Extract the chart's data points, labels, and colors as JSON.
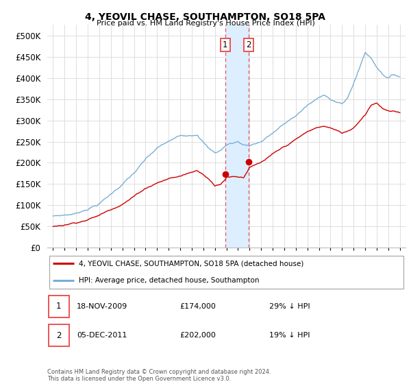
{
  "title": "4, YEOVIL CHASE, SOUTHAMPTON, SO18 5PA",
  "subtitle": "Price paid vs. HM Land Registry's House Price Index (HPI)",
  "red_label": "4, YEOVIL CHASE, SOUTHAMPTON, SO18 5PA (detached house)",
  "blue_label": "HPI: Average price, detached house, Southampton",
  "annotation1_num": "1",
  "annotation1_date": "18-NOV-2009",
  "annotation1_price": "£174,000",
  "annotation1_hpi": "29% ↓ HPI",
  "annotation2_num": "2",
  "annotation2_date": "05-DEC-2011",
  "annotation2_price": "£202,000",
  "annotation2_hpi": "19% ↓ HPI",
  "footer": "Contains HM Land Registry data © Crown copyright and database right 2024.\nThis data is licensed under the Open Government Licence v3.0.",
  "xlim_start": 1994.5,
  "xlim_end": 2025.5,
  "ylim_min": 0,
  "ylim_max": 525000,
  "red_color": "#cc0000",
  "blue_color": "#7aafd4",
  "shading_color": "#ddeeff",
  "vline_color": "#ee4444",
  "point1_x": 2009.88,
  "point1_y": 174000,
  "point2_x": 2011.92,
  "point2_y": 202000,
  "background_color": "#ffffff",
  "grid_color": "#dddddd",
  "yticks": [
    0,
    50000,
    100000,
    150000,
    200000,
    250000,
    300000,
    350000,
    400000,
    450000,
    500000
  ],
  "blue_years": [
    1995,
    1996,
    1997,
    1998,
    1999,
    2000,
    2001,
    2002,
    2003,
    2004,
    2005,
    2006,
    2007,
    2007.5,
    2008,
    2008.5,
    2009,
    2009.5,
    2010,
    2010.5,
    2011,
    2011.5,
    2012,
    2013,
    2014,
    2015,
    2016,
    2017,
    2018,
    2018.5,
    2019,
    2020,
    2020.5,
    2021,
    2021.5,
    2022,
    2022.5,
    2023,
    2023.5,
    2024,
    2024.5,
    2025
  ],
  "blue_vals": [
    75000,
    78000,
    82000,
    95000,
    108000,
    130000,
    155000,
    180000,
    210000,
    235000,
    250000,
    262000,
    268000,
    272000,
    255000,
    238000,
    228000,
    235000,
    247000,
    252000,
    255000,
    248000,
    248000,
    258000,
    278000,
    298000,
    318000,
    342000,
    358000,
    368000,
    358000,
    345000,
    360000,
    395000,
    430000,
    468000,
    455000,
    435000,
    420000,
    412000,
    418000,
    415000
  ],
  "red_years": [
    1995,
    1996,
    1997,
    1998,
    1999,
    2000,
    2001,
    2002,
    2003,
    2004,
    2005,
    2006,
    2007,
    2007.5,
    2008,
    2008.5,
    2009,
    2009.5,
    2009.88,
    2010,
    2010.5,
    2011,
    2011.5,
    2011.92,
    2012,
    2012.5,
    2013,
    2014,
    2015,
    2016,
    2017,
    2018,
    2018.5,
    2019,
    2020,
    2020.5,
    2021,
    2022,
    2022.5,
    2023,
    2023.5,
    2024,
    2025
  ],
  "red_vals": [
    50000,
    55000,
    62000,
    70000,
    80000,
    95000,
    110000,
    128000,
    148000,
    162000,
    172000,
    178000,
    188000,
    192000,
    185000,
    175000,
    158000,
    163000,
    174000,
    180000,
    183000,
    182000,
    182000,
    202000,
    205000,
    210000,
    215000,
    232000,
    248000,
    265000,
    282000,
    293000,
    295000,
    291000,
    278000,
    283000,
    292000,
    325000,
    348000,
    355000,
    342000,
    335000,
    330000
  ]
}
